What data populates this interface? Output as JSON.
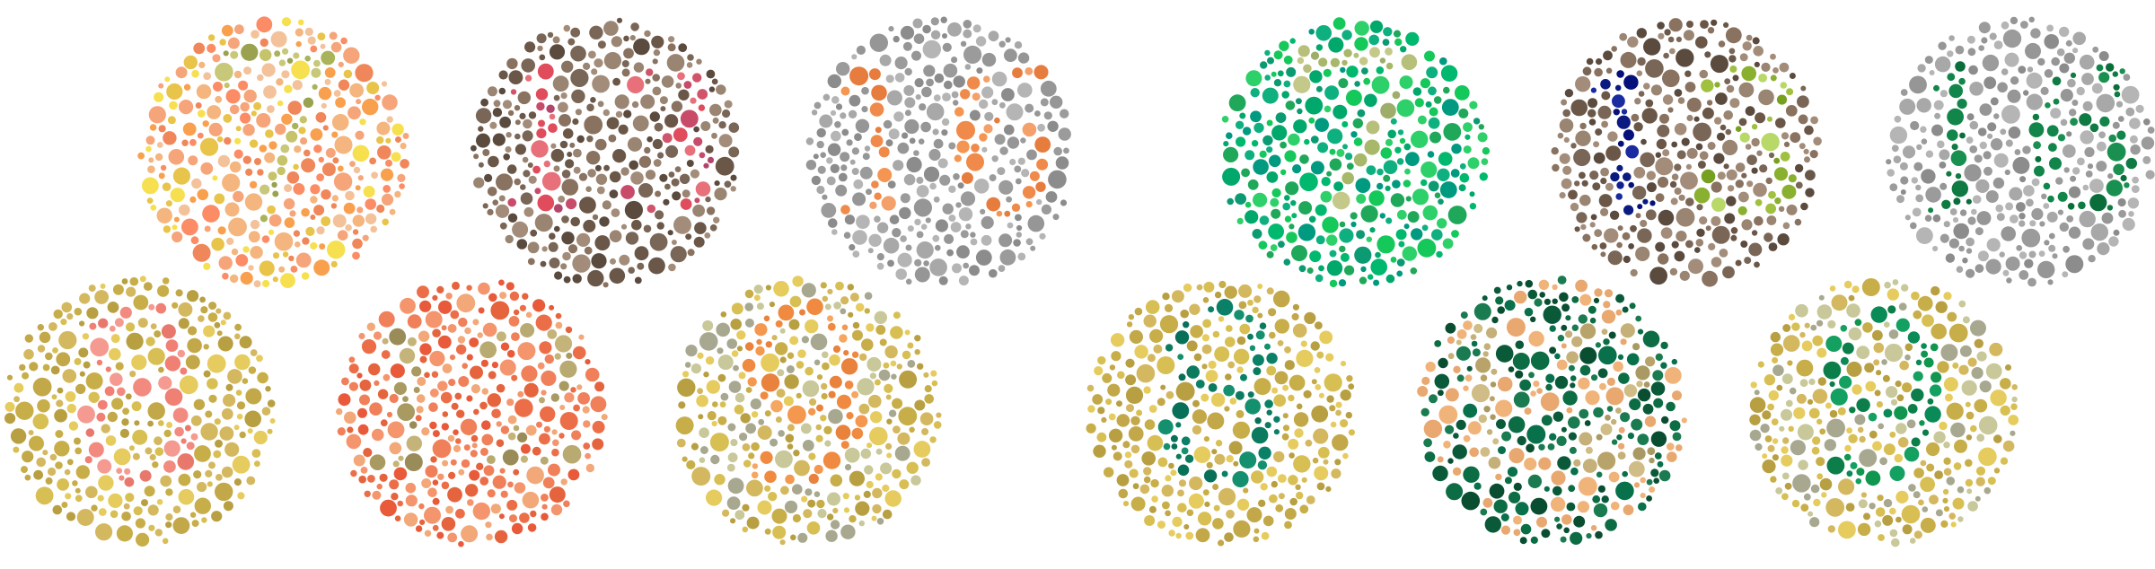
{
  "plates": [
    {
      "number": "7",
      "group": "original",
      "bg": [
        "#f6a57a",
        "#f0875a",
        "#f4b57e",
        "#e8c44a",
        "#f7e04f",
        "#f9a04f",
        "#fb8c66",
        "#f3c29a"
      ],
      "fg": [
        "#c5c46a",
        "#a8b35a",
        "#9aa250",
        "#c8c87a"
      ],
      "shadow": "#b8a080"
    },
    {
      "number": "13",
      "group": "original",
      "bg": [
        "#6b5748",
        "#8a7260",
        "#a38d7a",
        "#5b4a3e",
        "#7a6656",
        "#9a8472"
      ],
      "fg": [
        "#d0556a",
        "#e04c5c",
        "#c84b6a",
        "#e8707a",
        "#b4456a"
      ],
      "shadow": "#7a6656"
    },
    {
      "number": "16",
      "group": "original",
      "bg": [
        "#9b9b9b",
        "#a8a8a8",
        "#8c8c8c",
        "#b5b5b5",
        "#969696"
      ],
      "fg": [
        "#f08a4a",
        "#f59552",
        "#e77c3f",
        "#f3a06a"
      ],
      "shadow": "#9b9b9b"
    },
    {
      "number": "7",
      "group": "simulated",
      "bg": [
        "#00a86b",
        "#00b86e",
        "#1fa85a",
        "#0c9a72",
        "#14c85a",
        "#2ed06a",
        "#009a80",
        "#0fb080"
      ],
      "fg": [
        "#b6c07a",
        "#a8b86a",
        "#c4c888",
        "#9eae6a"
      ],
      "shadow": "#7aa070"
    },
    {
      "number": "13",
      "group": "simulated",
      "bg": [
        "#6b5748",
        "#8a7260",
        "#a38d7a",
        "#5b4a3e",
        "#7a6656",
        "#9a8472"
      ],
      "fg_a": [
        "#0a1a80",
        "#102090",
        "#1a2aa0",
        "#06107a"
      ],
      "fg_b": [
        "#8ab030",
        "#a0c040",
        "#78a020",
        "#b8d868"
      ],
      "shadow": "#7a6656"
    },
    {
      "number": "16",
      "group": "simulated",
      "bg": [
        "#9b9b9b",
        "#a8a8a8",
        "#8c8c8c",
        "#b5b5b5",
        "#969696"
      ],
      "fg": [
        "#12854a",
        "#0f7a42",
        "#1a9050",
        "#0a6e3a"
      ],
      "shadow": "#9b9b9b"
    },
    {
      "number": "8",
      "group": "original",
      "bg": [
        "#c8ae48",
        "#d8bf54",
        "#b8a042",
        "#e6cc5e",
        "#c2a848",
        "#d4b860"
      ],
      "fg": [
        "#f28a80",
        "#f07f74",
        "#e8786c",
        "#f49a90"
      ],
      "shadow": "#c8ae48"
    },
    {
      "number": "12",
      "group": "original",
      "bg": [
        "#ec6e48",
        "#f0805a",
        "#e5643e",
        "#f4956e",
        "#f2a878",
        "#e85a3a"
      ],
      "fg": [
        "#b8aa70",
        "#a89a60",
        "#c4b47a",
        "#9a8c58"
      ],
      "shadow": "#ec6e48"
    },
    {
      "number": "9",
      "group": "original",
      "bg": [
        "#c8ae48",
        "#d8bf54",
        "#b8a042",
        "#e6cc5e",
        "#c8c89a",
        "#a8a890",
        "#d4b860"
      ],
      "fg": [
        "#f3984e",
        "#f08a40",
        "#f5a660",
        "#e8823c"
      ],
      "shadow": "#c8ae48"
    },
    {
      "number": "8",
      "group": "simulated",
      "bg": [
        "#c8ae48",
        "#d8bf54",
        "#b8a042",
        "#e6cc5e",
        "#c2a848",
        "#d4b860"
      ],
      "fg": [
        "#0a8066",
        "#0c7a5e",
        "#14906e",
        "#087058"
      ],
      "shadow": "#c8ae48"
    },
    {
      "number": "12",
      "group": "simulated",
      "bg": [
        "#0a5a3a",
        "#0c6c44",
        "#08704a",
        "#1a7a50",
        "#0a4e32",
        "#f0b47a",
        "#e8a870"
      ],
      "fg": [
        "#c4b078",
        "#b8a46a",
        "#d0bc86",
        "#a89a62"
      ],
      "shadow": "#0a5a3a"
    },
    {
      "number": "9",
      "group": "simulated",
      "bg": [
        "#c8ae48",
        "#d8bf54",
        "#b8a042",
        "#e6cc5e",
        "#c8c89a",
        "#a8a890",
        "#d4b860"
      ],
      "fg": [
        "#0a8a56",
        "#10964e",
        "#0c7e4a",
        "#14a060"
      ],
      "shadow": "#c8ae48"
    }
  ]
}
